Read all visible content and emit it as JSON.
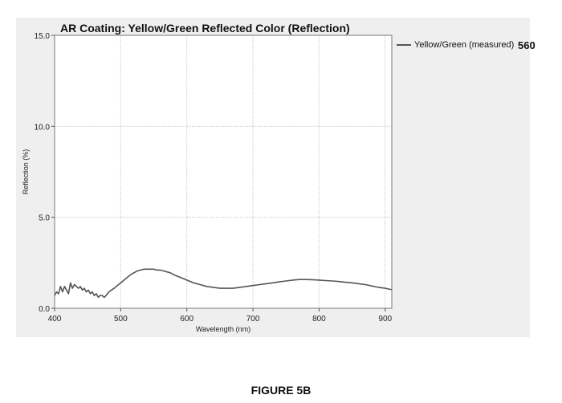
{
  "figure": {
    "reference_number": "560",
    "caption": "FIGURE 5B"
  },
  "chart_data": {
    "type": "line",
    "title": "AR Coating: Yellow/Green Reflected Color (Reflection)",
    "xlabel": "Wavelength (nm)",
    "ylabel": "Reflection (%)",
    "xlim": [
      400,
      910
    ],
    "ylim": [
      0,
      15
    ],
    "x_ticks": [
      400,
      500,
      600,
      700,
      800,
      900
    ],
    "x_tick_labels": [
      "400",
      "500",
      "600",
      "700",
      "800",
      "900"
    ],
    "y_ticks": [
      0,
      5,
      10,
      15
    ],
    "y_tick_labels": [
      "0.0",
      "5.0",
      "10.0",
      "15.0"
    ],
    "grid": true,
    "legend_position": "outside-right",
    "series": [
      {
        "name": "Yellow/Green (measured)",
        "color": "#555555",
        "x": [
          400,
          403,
          406,
          409,
          412,
          415,
          418,
          421,
          424,
          427,
          430,
          433,
          436,
          439,
          442,
          445,
          448,
          451,
          454,
          457,
          460,
          463,
          466,
          469,
          472,
          475,
          478,
          482,
          486,
          490,
          495,
          500,
          505,
          510,
          515,
          520,
          525,
          530,
          535,
          540,
          545,
          550,
          555,
          560,
          565,
          570,
          575,
          580,
          590,
          600,
          610,
          620,
          630,
          640,
          650,
          660,
          670,
          680,
          690,
          700,
          710,
          720,
          730,
          740,
          750,
          760,
          770,
          780,
          790,
          800,
          810,
          820,
          830,
          840,
          850,
          860,
          870,
          880,
          890,
          900,
          910
        ],
        "y": [
          0.7,
          0.9,
          0.8,
          1.2,
          0.9,
          1.2,
          1.0,
          0.8,
          1.4,
          1.1,
          1.3,
          1.2,
          1.1,
          1.2,
          1.0,
          1.1,
          0.9,
          1.0,
          0.8,
          0.9,
          0.7,
          0.8,
          0.6,
          0.7,
          0.7,
          0.6,
          0.7,
          0.9,
          1.0,
          1.1,
          1.25,
          1.4,
          1.55,
          1.7,
          1.85,
          1.95,
          2.05,
          2.1,
          2.15,
          2.15,
          2.15,
          2.15,
          2.1,
          2.1,
          2.05,
          2.0,
          1.95,
          1.85,
          1.7,
          1.55,
          1.4,
          1.3,
          1.2,
          1.15,
          1.1,
          1.1,
          1.1,
          1.15,
          1.2,
          1.25,
          1.3,
          1.35,
          1.4,
          1.45,
          1.5,
          1.55,
          1.58,
          1.58,
          1.57,
          1.55,
          1.52,
          1.5,
          1.47,
          1.43,
          1.4,
          1.35,
          1.3,
          1.22,
          1.15,
          1.1,
          1.02
        ]
      }
    ]
  }
}
